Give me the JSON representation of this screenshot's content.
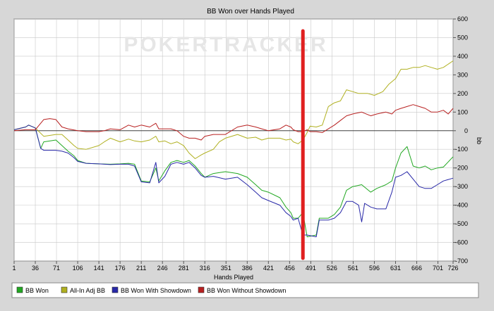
{
  "chart_data": {
    "type": "line",
    "title": "BB Won over Hands Played",
    "xlabel": "Hands Played",
    "ylabel": "bb",
    "watermark": "POKERTRACKER",
    "xlim": [
      1,
      726
    ],
    "ylim": [
      -700,
      600
    ],
    "x_ticks": [
      1,
      36,
      71,
      106,
      141,
      176,
      211,
      246,
      281,
      316,
      351,
      386,
      421,
      456,
      491,
      526,
      561,
      596,
      631,
      666,
      701,
      726
    ],
    "y_ticks": [
      600,
      500,
      400,
      300,
      200,
      100,
      0,
      -100,
      -200,
      -300,
      -400,
      -500,
      -600,
      -700
    ],
    "grid": true,
    "legend_position": "bottom",
    "marker": {
      "x": 478,
      "color": "#e02020"
    },
    "colors": {
      "plot_bg": "#ffffff",
      "grid": "#c8c8c8",
      "zero_line": "#404040"
    },
    "series": [
      {
        "name": "BB Won",
        "color": "#22a822",
        "points": [
          [
            1,
            5
          ],
          [
            20,
            20
          ],
          [
            25,
            30
          ],
          [
            36,
            15
          ],
          [
            45,
            -95
          ],
          [
            50,
            -60
          ],
          [
            70,
            -50
          ],
          [
            80,
            -80
          ],
          [
            90,
            -110
          ],
          [
            100,
            -135
          ],
          [
            106,
            -160
          ],
          [
            120,
            -175
          ],
          [
            141,
            -178
          ],
          [
            160,
            -180
          ],
          [
            176,
            -178
          ],
          [
            190,
            -175
          ],
          [
            200,
            -180
          ],
          [
            211,
            -270
          ],
          [
            225,
            -275
          ],
          [
            235,
            -200
          ],
          [
            240,
            -270
          ],
          [
            250,
            -215
          ],
          [
            260,
            -170
          ],
          [
            270,
            -160
          ],
          [
            281,
            -170
          ],
          [
            290,
            -160
          ],
          [
            300,
            -190
          ],
          [
            310,
            -230
          ],
          [
            316,
            -250
          ],
          [
            330,
            -230
          ],
          [
            350,
            -220
          ],
          [
            370,
            -230
          ],
          [
            386,
            -250
          ],
          [
            400,
            -290
          ],
          [
            410,
            -320
          ],
          [
            421,
            -330
          ],
          [
            440,
            -360
          ],
          [
            450,
            -410
          ],
          [
            458,
            -440
          ],
          [
            462,
            -470
          ],
          [
            470,
            -470
          ],
          [
            478,
            -440
          ],
          [
            485,
            -570
          ],
          [
            500,
            -560
          ],
          [
            505,
            -470
          ],
          [
            520,
            -470
          ],
          [
            530,
            -450
          ],
          [
            540,
            -410
          ],
          [
            550,
            -320
          ],
          [
            560,
            -300
          ],
          [
            575,
            -290
          ],
          [
            590,
            -330
          ],
          [
            600,
            -310
          ],
          [
            615,
            -290
          ],
          [
            625,
            -270
          ],
          [
            631,
            -200
          ],
          [
            640,
            -120
          ],
          [
            650,
            -85
          ],
          [
            660,
            -190
          ],
          [
            670,
            -200
          ],
          [
            680,
            -190
          ],
          [
            690,
            -210
          ],
          [
            700,
            -200
          ],
          [
            710,
            -195
          ],
          [
            726,
            -140
          ]
        ]
      },
      {
        "name": "All-In Adj BB",
        "color": "#b0b020",
        "points": [
          [
            1,
            5
          ],
          [
            20,
            20
          ],
          [
            25,
            30
          ],
          [
            36,
            15
          ],
          [
            50,
            -30
          ],
          [
            70,
            -20
          ],
          [
            80,
            -20
          ],
          [
            90,
            -50
          ],
          [
            100,
            -80
          ],
          [
            106,
            -95
          ],
          [
            120,
            -100
          ],
          [
            141,
            -80
          ],
          [
            150,
            -60
          ],
          [
            160,
            -40
          ],
          [
            176,
            -60
          ],
          [
            190,
            -45
          ],
          [
            200,
            -55
          ],
          [
            211,
            -60
          ],
          [
            225,
            -50
          ],
          [
            235,
            -30
          ],
          [
            240,
            -60
          ],
          [
            250,
            -55
          ],
          [
            260,
            -70
          ],
          [
            270,
            -60
          ],
          [
            281,
            -80
          ],
          [
            290,
            -120
          ],
          [
            300,
            -150
          ],
          [
            310,
            -130
          ],
          [
            316,
            -120
          ],
          [
            330,
            -100
          ],
          [
            340,
            -60
          ],
          [
            350,
            -40
          ],
          [
            370,
            -20
          ],
          [
            386,
            -40
          ],
          [
            400,
            -35
          ],
          [
            410,
            -50
          ],
          [
            421,
            -40
          ],
          [
            440,
            -40
          ],
          [
            450,
            -50
          ],
          [
            458,
            -45
          ],
          [
            462,
            -60
          ],
          [
            470,
            -70
          ],
          [
            478,
            -50
          ],
          [
            485,
            -10
          ],
          [
            490,
            25
          ],
          [
            500,
            20
          ],
          [
            510,
            30
          ],
          [
            520,
            130
          ],
          [
            530,
            150
          ],
          [
            540,
            160
          ],
          [
            550,
            220
          ],
          [
            560,
            210
          ],
          [
            570,
            200
          ],
          [
            585,
            200
          ],
          [
            596,
            190
          ],
          [
            610,
            210
          ],
          [
            620,
            250
          ],
          [
            631,
            280
          ],
          [
            640,
            330
          ],
          [
            650,
            330
          ],
          [
            660,
            340
          ],
          [
            670,
            340
          ],
          [
            680,
            350
          ],
          [
            690,
            340
          ],
          [
            700,
            330
          ],
          [
            710,
            340
          ],
          [
            726,
            375
          ]
        ]
      },
      {
        "name": "BB Won With Showdown",
        "color": "#2828a8",
        "points": [
          [
            1,
            5
          ],
          [
            20,
            20
          ],
          [
            25,
            30
          ],
          [
            36,
            15
          ],
          [
            45,
            -95
          ],
          [
            50,
            -105
          ],
          [
            70,
            -105
          ],
          [
            80,
            -110
          ],
          [
            90,
            -120
          ],
          [
            100,
            -145
          ],
          [
            106,
            -165
          ],
          [
            120,
            -175
          ],
          [
            141,
            -178
          ],
          [
            160,
            -182
          ],
          [
            176,
            -180
          ],
          [
            190,
            -180
          ],
          [
            200,
            -190
          ],
          [
            211,
            -275
          ],
          [
            225,
            -280
          ],
          [
            235,
            -170
          ],
          [
            240,
            -280
          ],
          [
            250,
            -245
          ],
          [
            260,
            -180
          ],
          [
            270,
            -170
          ],
          [
            281,
            -180
          ],
          [
            290,
            -170
          ],
          [
            300,
            -200
          ],
          [
            310,
            -240
          ],
          [
            316,
            -250
          ],
          [
            330,
            -245
          ],
          [
            350,
            -260
          ],
          [
            370,
            -250
          ],
          [
            386,
            -290
          ],
          [
            400,
            -330
          ],
          [
            410,
            -360
          ],
          [
            421,
            -375
          ],
          [
            440,
            -400
          ],
          [
            450,
            -440
          ],
          [
            458,
            -460
          ],
          [
            462,
            -480
          ],
          [
            470,
            -470
          ],
          [
            478,
            -560
          ],
          [
            485,
            -560
          ],
          [
            500,
            -570
          ],
          [
            505,
            -480
          ],
          [
            520,
            -480
          ],
          [
            530,
            -470
          ],
          [
            540,
            -440
          ],
          [
            550,
            -380
          ],
          [
            560,
            -380
          ],
          [
            570,
            -400
          ],
          [
            575,
            -490
          ],
          [
            580,
            -390
          ],
          [
            590,
            -410
          ],
          [
            600,
            -420
          ],
          [
            615,
            -420
          ],
          [
            625,
            -330
          ],
          [
            631,
            -250
          ],
          [
            640,
            -240
          ],
          [
            650,
            -220
          ],
          [
            660,
            -260
          ],
          [
            670,
            -300
          ],
          [
            680,
            -310
          ],
          [
            690,
            -310
          ],
          [
            700,
            -290
          ],
          [
            710,
            -270
          ],
          [
            726,
            -255
          ]
        ]
      },
      {
        "name": "BB Won Without Showdown",
        "color": "#b82020",
        "points": [
          [
            1,
            0
          ],
          [
            20,
            5
          ],
          [
            36,
            5
          ],
          [
            50,
            60
          ],
          [
            60,
            65
          ],
          [
            70,
            60
          ],
          [
            80,
            20
          ],
          [
            90,
            10
          ],
          [
            106,
            0
          ],
          [
            120,
            -5
          ],
          [
            141,
            -5
          ],
          [
            150,
            0
          ],
          [
            160,
            10
          ],
          [
            176,
            5
          ],
          [
            190,
            30
          ],
          [
            200,
            20
          ],
          [
            211,
            30
          ],
          [
            225,
            20
          ],
          [
            235,
            40
          ],
          [
            240,
            10
          ],
          [
            250,
            10
          ],
          [
            260,
            10
          ],
          [
            270,
            0
          ],
          [
            281,
            -30
          ],
          [
            290,
            -40
          ],
          [
            300,
            -40
          ],
          [
            310,
            -50
          ],
          [
            316,
            -30
          ],
          [
            330,
            -20
          ],
          [
            350,
            -20
          ],
          [
            370,
            20
          ],
          [
            386,
            30
          ],
          [
            400,
            20
          ],
          [
            410,
            10
          ],
          [
            421,
            0
          ],
          [
            440,
            10
          ],
          [
            450,
            30
          ],
          [
            458,
            20
          ],
          [
            462,
            5
          ],
          [
            470,
            -5
          ],
          [
            478,
            -5
          ],
          [
            485,
            5
          ],
          [
            490,
            -5
          ],
          [
            500,
            -5
          ],
          [
            510,
            -10
          ],
          [
            520,
            10
          ],
          [
            530,
            30
          ],
          [
            540,
            55
          ],
          [
            550,
            80
          ],
          [
            560,
            90
          ],
          [
            575,
            100
          ],
          [
            590,
            80
          ],
          [
            600,
            90
          ],
          [
            615,
            100
          ],
          [
            625,
            90
          ],
          [
            631,
            110
          ],
          [
            640,
            120
          ],
          [
            650,
            130
          ],
          [
            660,
            140
          ],
          [
            670,
            130
          ],
          [
            680,
            120
          ],
          [
            690,
            100
          ],
          [
            700,
            100
          ],
          [
            710,
            110
          ],
          [
            718,
            90
          ],
          [
            726,
            120
          ]
        ]
      }
    ]
  }
}
